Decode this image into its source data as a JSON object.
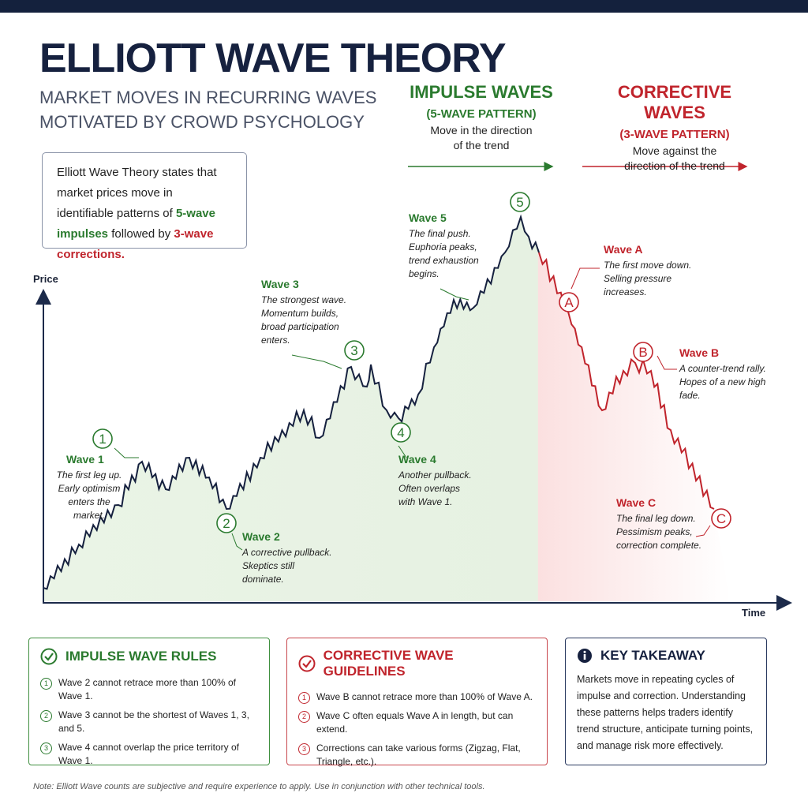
{
  "header": {
    "title": "ELLIOTT WAVE THEORY",
    "subtitle": [
      "MARKET MOVES IN RECURRING WAVES",
      "MOTIVATED BY CROWD PSYCHOLOGY"
    ]
  },
  "impulse_header": {
    "title": "IMPULSE WAVES",
    "pattern": "(5-WAVE PATTERN)",
    "description": [
      "Move in the direction",
      "of the trend"
    ]
  },
  "corrective_header": {
    "title": "CORRECTIVE WAVES",
    "pattern": "(3-WAVE PATTERN)",
    "description": [
      "Move against the",
      "direction of the trend"
    ]
  },
  "intro": {
    "text": "Elliott Wave Theory states that market prices move in identifiable patterns of",
    "impulse": "5-wave impulses",
    "middle": "followed by",
    "corrective": "3-wave corrections."
  },
  "axes": {
    "y_label": "Price",
    "x_label": "Time"
  },
  "waves": [
    {
      "marker": "1",
      "title": "Wave 1",
      "lines": [
        "The first leg up.",
        "Early optimism",
        "enters the market."
      ]
    },
    {
      "marker": "2",
      "title": "Wave 2",
      "lines": [
        "A corrective pullback.",
        "Skeptics still",
        "dominate."
      ]
    },
    {
      "marker": "3",
      "title": "Wave 3",
      "lines": [
        "The strongest wave.",
        "Momentum builds,",
        "broad participation",
        "enters."
      ]
    },
    {
      "marker": "4",
      "title": "Wave 4",
      "lines": [
        "Another pullback.",
        "Often overlaps",
        "with Wave 1."
      ]
    },
    {
      "marker": "5",
      "title": "Wave 5",
      "lines": [
        "The final push.",
        "Euphoria peaks,",
        "trend exhaustion",
        "begins."
      ]
    },
    {
      "marker": "A",
      "title": "Wave A",
      "lines": [
        "The first move down.",
        "Selling pressure",
        "increases."
      ]
    },
    {
      "marker": "B",
      "title": "Wave B",
      "lines": [
        "A counter-trend rally.",
        "Hopes of a new high",
        "fade."
      ]
    },
    {
      "marker": "C",
      "title": "Wave C",
      "lines": [
        "The final leg down.",
        "Pessimism peaks,",
        "correction complete."
      ]
    }
  ],
  "panels": [
    {
      "title": "IMPULSE WAVE RULES",
      "items": [
        {
          "number": "1",
          "text": "Wave 2 cannot retrace more than 100% of Wave 1."
        },
        {
          "number": "2",
          "text": "Wave 3 cannot be the shortest of Waves 1, 3, and 5."
        },
        {
          "number": "3",
          "text": "Wave 4 cannot overlap the price territory of Wave 1."
        }
      ]
    },
    {
      "title": "CORRECTIVE WAVE GUIDELINES",
      "items": [
        {
          "number": "1",
          "text": "Wave B cannot retrace more than 100% of Wave A."
        },
        {
          "number": "2",
          "text": "Wave C often equals Wave A in length, but can extend."
        },
        {
          "number": "3",
          "text": "Corrections can take various forms (Zigzag, Flat, Triangle, etc.)."
        }
      ]
    }
  ],
  "takeaway": {
    "title": "KEY TAKEAWAY",
    "text": "Markets move in repeating cycles of impulse and correction. Understanding these patterns helps traders identify trend structure, anticipate turning points, and manage risk more effectively."
  },
  "note": "Note:  Elliott Wave counts are subjective and require experience to apply. Use in conjunction with other technical tools."
}
